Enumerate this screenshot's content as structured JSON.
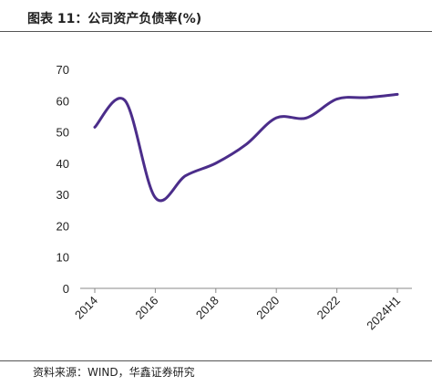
{
  "figure_label": "图表 11：公司资产负债率(%)",
  "source": "资料来源：WIND，华鑫证券研究",
  "colors": {
    "line": "#4b2d8a",
    "axis": "#888888",
    "rule": "#555555"
  },
  "chart_data": {
    "type": "line",
    "title": "公司资产负债率(%)",
    "categories": [
      "2014",
      "2015",
      "2016",
      "2017",
      "2018",
      "2019",
      "2020",
      "2021",
      "2022",
      "2023",
      "2024H1"
    ],
    "x_tick_labels": [
      "2014",
      "2016",
      "2018",
      "2020",
      "2022",
      "2024H1"
    ],
    "y_ticks": [
      0,
      10,
      20,
      30,
      40,
      50,
      60,
      70
    ],
    "ylim": [
      0,
      70
    ],
    "series": [
      {
        "values": [
          51.5,
          60,
          29,
          36,
          40,
          46,
          54.5,
          54.5,
          60.5,
          61,
          62
        ]
      }
    ],
    "grid": false,
    "legend": "none",
    "smooth": true
  }
}
